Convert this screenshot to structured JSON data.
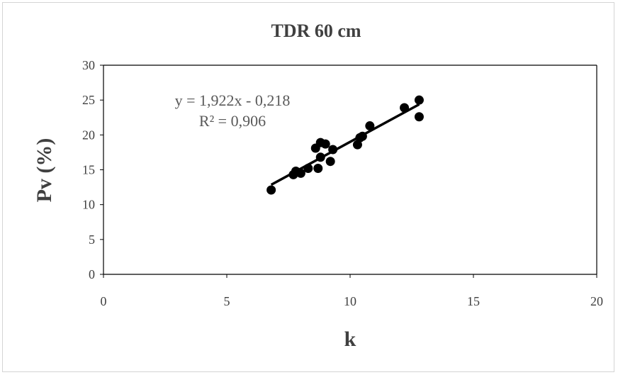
{
  "chart_data": {
    "type": "scatter",
    "title": "TDR 60 cm",
    "xlabel": "k",
    "ylabel": "Pv (%)",
    "xlim": [
      0,
      20
    ],
    "ylim": [
      0,
      30
    ],
    "xticks": [
      "0",
      "5",
      "10",
      "15",
      "20"
    ],
    "yticks": [
      "0",
      "5",
      "10",
      "15",
      "20",
      "25",
      "30"
    ],
    "grid": false,
    "legend": "none",
    "marker_color": "#000000",
    "points": [
      {
        "x": 6.8,
        "y": 12.1
      },
      {
        "x": 7.7,
        "y": 14.3
      },
      {
        "x": 7.8,
        "y": 14.8
      },
      {
        "x": 8.0,
        "y": 14.5
      },
      {
        "x": 8.3,
        "y": 15.2
      },
      {
        "x": 8.6,
        "y": 18.1
      },
      {
        "x": 8.7,
        "y": 15.2
      },
      {
        "x": 8.8,
        "y": 16.8
      },
      {
        "x": 8.8,
        "y": 18.9
      },
      {
        "x": 9.0,
        "y": 18.7
      },
      {
        "x": 9.2,
        "y": 16.2
      },
      {
        "x": 9.3,
        "y": 17.9
      },
      {
        "x": 10.3,
        "y": 18.6
      },
      {
        "x": 10.4,
        "y": 19.6
      },
      {
        "x": 10.5,
        "y": 19.8
      },
      {
        "x": 10.8,
        "y": 21.3
      },
      {
        "x": 12.2,
        "y": 23.9
      },
      {
        "x": 12.8,
        "y": 25.0
      },
      {
        "x": 12.8,
        "y": 22.6
      }
    ],
    "trendline": {
      "slope": 1.922,
      "intercept": -0.218,
      "x_range": [
        6.8,
        12.8
      ],
      "equation": "y = 1,922x - 0,218",
      "r2": "R² = 0,906"
    }
  }
}
